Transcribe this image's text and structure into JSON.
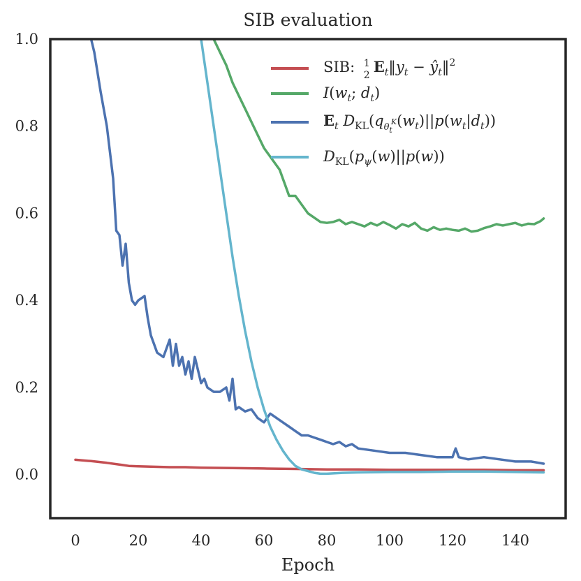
{
  "chart_data": {
    "type": "line",
    "title": "SIB evaluation",
    "xlabel": "Epoch",
    "ylabel": "",
    "xlim": [
      -8,
      156
    ],
    "ylim": [
      -0.1,
      1.0
    ],
    "xticks": [
      0,
      20,
      40,
      60,
      80,
      100,
      120,
      140
    ],
    "yticks": [
      0.0,
      0.2,
      0.4,
      0.6,
      0.8,
      1.0
    ],
    "xtick_labels": [
      "0",
      "20",
      "40",
      "60",
      "80",
      "100",
      "120",
      "140"
    ],
    "ytick_labels": [
      "0.0",
      "0.2",
      "0.4",
      "0.6",
      "0.8",
      "1.0"
    ],
    "grid": false,
    "legend_position": "top-right",
    "series": [
      {
        "name": "SIB: ½ E_t ||y_t − ŷ_t||²",
        "color": "#c44e52",
        "x": [
          0,
          5,
          10,
          15,
          17,
          20,
          25,
          30,
          35,
          40,
          50,
          60,
          70,
          80,
          90,
          100,
          110,
          120,
          130,
          140,
          149
        ],
        "y": [
          0.034,
          0.031,
          0.027,
          0.022,
          0.02,
          0.019,
          0.018,
          0.017,
          0.017,
          0.016,
          0.015,
          0.014,
          0.013,
          0.012,
          0.012,
          0.011,
          0.011,
          0.011,
          0.011,
          0.01,
          0.01
        ]
      },
      {
        "name": "I(w_t; d_t)",
        "color": "#55a868",
        "x": [
          44,
          46,
          48,
          50,
          52,
          54,
          56,
          58,
          60,
          62,
          64,
          65,
          66,
          67,
          68,
          70,
          72,
          74,
          76,
          78,
          80,
          82,
          84,
          86,
          88,
          90,
          92,
          94,
          96,
          98,
          100,
          102,
          104,
          106,
          108,
          110,
          112,
          114,
          116,
          118,
          120,
          122,
          124,
          126,
          128,
          130,
          132,
          134,
          136,
          138,
          140,
          142,
          144,
          146,
          148,
          149
        ],
        "y": [
          1.0,
          0.97,
          0.94,
          0.9,
          0.87,
          0.84,
          0.81,
          0.78,
          0.75,
          0.73,
          0.71,
          0.7,
          0.68,
          0.66,
          0.64,
          0.64,
          0.62,
          0.6,
          0.59,
          0.58,
          0.578,
          0.58,
          0.585,
          0.575,
          0.58,
          0.575,
          0.57,
          0.578,
          0.572,
          0.58,
          0.573,
          0.565,
          0.575,
          0.57,
          0.578,
          0.565,
          0.56,
          0.568,
          0.562,
          0.565,
          0.562,
          0.56,
          0.565,
          0.558,
          0.56,
          0.566,
          0.57,
          0.575,
          0.572,
          0.575,
          0.578,
          0.572,
          0.576,
          0.575,
          0.582,
          0.588
        ]
      },
      {
        "name": "E_t D_KL(q_θ_t^K(w_t) || p(w_t|d_t))",
        "color": "#4c72b0",
        "x": [
          5,
          6,
          8,
          10,
          12,
          13,
          14,
          15,
          16,
          17,
          18,
          19,
          20,
          22,
          23,
          24,
          25,
          26,
          28,
          30,
          31,
          32,
          33,
          34,
          35,
          36,
          37,
          38,
          40,
          41,
          42,
          44,
          46,
          48,
          49,
          50,
          51,
          52,
          54,
          56,
          58,
          60,
          62,
          64,
          66,
          68,
          70,
          72,
          74,
          76,
          78,
          80,
          82,
          84,
          86,
          88,
          90,
          95,
          100,
          105,
          110,
          115,
          120,
          121,
          122,
          125,
          130,
          135,
          140,
          145,
          149
        ],
        "y": [
          1.0,
          0.97,
          0.88,
          0.8,
          0.68,
          0.56,
          0.55,
          0.48,
          0.53,
          0.44,
          0.4,
          0.39,
          0.4,
          0.41,
          0.36,
          0.32,
          0.3,
          0.28,
          0.27,
          0.31,
          0.25,
          0.3,
          0.25,
          0.27,
          0.23,
          0.26,
          0.22,
          0.27,
          0.21,
          0.22,
          0.2,
          0.19,
          0.19,
          0.2,
          0.17,
          0.22,
          0.15,
          0.155,
          0.145,
          0.15,
          0.13,
          0.12,
          0.14,
          0.13,
          0.12,
          0.11,
          0.1,
          0.09,
          0.09,
          0.085,
          0.08,
          0.075,
          0.07,
          0.075,
          0.065,
          0.07,
          0.06,
          0.055,
          0.05,
          0.05,
          0.045,
          0.04,
          0.04,
          0.06,
          0.04,
          0.035,
          0.04,
          0.035,
          0.03,
          0.03,
          0.025
        ]
      },
      {
        "name": "D_KL(p_ψ(w) || p(w))",
        "color": "#64b5cd",
        "x": [
          40,
          42,
          44,
          46,
          48,
          50,
          52,
          54,
          56,
          58,
          60,
          62,
          64,
          66,
          68,
          70,
          72,
          74,
          76,
          78,
          80,
          85,
          90,
          100,
          110,
          120,
          130,
          140,
          149
        ],
        "y": [
          1.0,
          0.9,
          0.8,
          0.7,
          0.6,
          0.5,
          0.41,
          0.33,
          0.26,
          0.2,
          0.15,
          0.11,
          0.08,
          0.055,
          0.035,
          0.02,
          0.012,
          0.008,
          0.004,
          0.002,
          0.002,
          0.004,
          0.005,
          0.006,
          0.006,
          0.007,
          0.007,
          0.006,
          0.005
        ]
      }
    ]
  }
}
